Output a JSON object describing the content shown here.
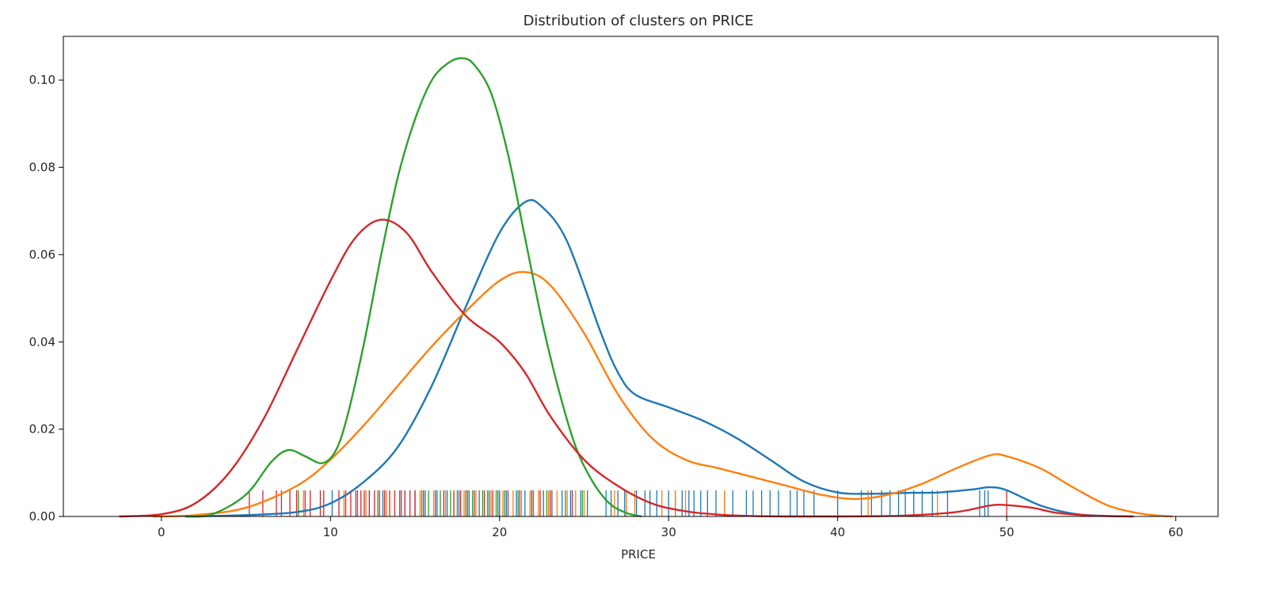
{
  "chart_data": {
    "type": "line",
    "title": "Distribution of clusters on PRICE",
    "xlabel": "PRICE",
    "ylabel": "",
    "xlim": [
      -5.8,
      62.5
    ],
    "ylim": [
      0,
      0.11
    ],
    "xticks": [
      0,
      10,
      20,
      30,
      40,
      50,
      60
    ],
    "xtick_labels": [
      "0",
      "10",
      "20",
      "30",
      "40",
      "50",
      "60"
    ],
    "yticks": [
      0.0,
      0.02,
      0.04,
      0.06,
      0.08,
      0.1
    ],
    "ytick_labels": [
      "0.00",
      "0.02",
      "0.04",
      "0.06",
      "0.08",
      "0.10"
    ],
    "grid": false,
    "legend": "none",
    "series": [
      {
        "color": "#1f77b4",
        "x": [
          1.5,
          5,
          8,
          10,
          12,
          14,
          16,
          18,
          20,
          21.5,
          22.5,
          24,
          26,
          27,
          28,
          30,
          32,
          34,
          36,
          38,
          40,
          42,
          44,
          46,
          48,
          49,
          50,
          52,
          54,
          56,
          57.5
        ],
        "y": [
          0,
          0.0003,
          0.001,
          0.003,
          0.008,
          0.016,
          0.03,
          0.048,
          0.065,
          0.072,
          0.071,
          0.063,
          0.042,
          0.033,
          0.028,
          0.025,
          0.022,
          0.018,
          0.013,
          0.008,
          0.0055,
          0.0052,
          0.0054,
          0.0055,
          0.0062,
          0.0067,
          0.006,
          0.0025,
          0.0006,
          0.0001,
          0
        ]
      },
      {
        "color": "#ff7f0e",
        "x": [
          -0.5,
          2,
          5,
          8,
          10,
          12,
          14,
          16,
          18,
          20,
          21.5,
          23,
          25,
          27,
          29,
          31,
          33,
          35,
          37,
          39,
          41,
          43,
          45,
          47,
          49,
          50,
          52,
          54,
          56,
          58,
          59.8
        ],
        "y": [
          0,
          0.0003,
          0.002,
          0.007,
          0.013,
          0.021,
          0.03,
          0.039,
          0.047,
          0.054,
          0.056,
          0.053,
          0.042,
          0.028,
          0.018,
          0.013,
          0.011,
          0.009,
          0.007,
          0.005,
          0.004,
          0.005,
          0.0075,
          0.011,
          0.014,
          0.0138,
          0.011,
          0.0065,
          0.0025,
          0.0006,
          0
        ]
      },
      {
        "color": "#2ca02c",
        "x": [
          1.4,
          3,
          5,
          6.5,
          7.5,
          8.5,
          9.5,
          10.3,
          11,
          12,
          13,
          14,
          15,
          16,
          17,
          17.8,
          18.5,
          19.5,
          20.5,
          21.5,
          22.5,
          23.5,
          24.5,
          25.5,
          26.5,
          27.5,
          28.4
        ],
        "y": [
          0,
          0.0005,
          0.005,
          0.0125,
          0.0152,
          0.0138,
          0.0122,
          0.015,
          0.023,
          0.04,
          0.06,
          0.078,
          0.091,
          0.1,
          0.104,
          0.105,
          0.1035,
          0.097,
          0.083,
          0.064,
          0.045,
          0.029,
          0.016,
          0.008,
          0.003,
          0.0008,
          0
        ]
      },
      {
        "color": "#d62728",
        "x": [
          -2.5,
          0,
          2,
          4,
          6,
          8,
          10,
          11.5,
          13,
          14.5,
          16,
          18,
          20,
          21.5,
          23,
          25,
          27,
          29,
          31,
          33,
          35,
          37,
          40,
          44,
          47,
          49,
          50,
          51.5,
          53,
          55,
          57.5
        ],
        "y": [
          0,
          0.0005,
          0.003,
          0.01,
          0.022,
          0.038,
          0.054,
          0.064,
          0.068,
          0.065,
          0.056,
          0.046,
          0.04,
          0.033,
          0.023,
          0.013,
          0.007,
          0.003,
          0.0012,
          0.0004,
          0.0001,
          0,
          0,
          0.0002,
          0.001,
          0.0025,
          0.0026,
          0.002,
          0.0008,
          0.0002,
          0
        ]
      }
    ],
    "rug": [
      {
        "color": "#1f77b4",
        "x": [
          10.1,
          11.6,
          12.3,
          13.1,
          14.2,
          15.0,
          15.6,
          16.3,
          16.9,
          17.6,
          18.2,
          18.8,
          19.3,
          19.9,
          20.4,
          21.0,
          21.5,
          22.0,
          22.6,
          23.1,
          23.7,
          24.2,
          24.8,
          25.2,
          26.3,
          26.6,
          27.0,
          27.4,
          28.1,
          28.6,
          28.9,
          29.3,
          30.0,
          30.4,
          30.8,
          31.2,
          31.5,
          31.9,
          32.3,
          32.8,
          33.3,
          33.8,
          34.6,
          35.0,
          35.5,
          36.0,
          36.5,
          37.2,
          37.6,
          38.0,
          38.6,
          40.0,
          41.4,
          42.0,
          42.6,
          43.1,
          43.6,
          44.0,
          44.5,
          45.0,
          45.6,
          46.5,
          48.4,
          48.7,
          48.9
        ]
      },
      {
        "color": "#ff7f0e",
        "x": [
          8.4,
          10.8,
          12.1,
          13.3,
          14.1,
          15.3,
          16.1,
          16.8,
          17.9,
          18.6,
          19.5,
          20.2,
          20.8,
          21.3,
          21.8,
          22.3,
          22.9,
          23.4,
          24.0,
          24.5,
          25.0,
          26.8,
          27.5,
          28.0,
          29.6,
          30.4,
          31.0,
          33.3,
          41.8,
          45.9
        ]
      },
      {
        "color": "#2ca02c",
        "x": [
          8.1,
          12.8,
          14.4,
          15.4,
          15.8,
          16.5,
          17.1,
          17.5,
          18.0,
          18.4,
          19.0,
          19.4,
          19.8,
          20.3,
          21.1,
          22.0,
          22.8,
          23.9,
          24.9
        ]
      },
      {
        "color": "#d62728",
        "x": [
          5.2,
          6.0,
          6.8,
          7.1,
          7.6,
          8.0,
          8.5,
          8.8,
          9.4,
          9.6,
          10.5,
          10.9,
          11.2,
          11.5,
          11.8,
          12.0,
          12.3,
          12.6,
          12.9,
          13.2,
          13.5,
          13.8,
          14.1,
          14.4,
          14.7,
          15.0,
          15.5,
          16.2,
          16.7,
          17.3,
          17.7,
          18.1,
          18.5,
          19.1,
          19.6,
          20.0,
          20.5,
          21.2,
          21.9,
          22.4,
          23.0,
          24.3,
          50.0
        ]
      }
    ]
  }
}
